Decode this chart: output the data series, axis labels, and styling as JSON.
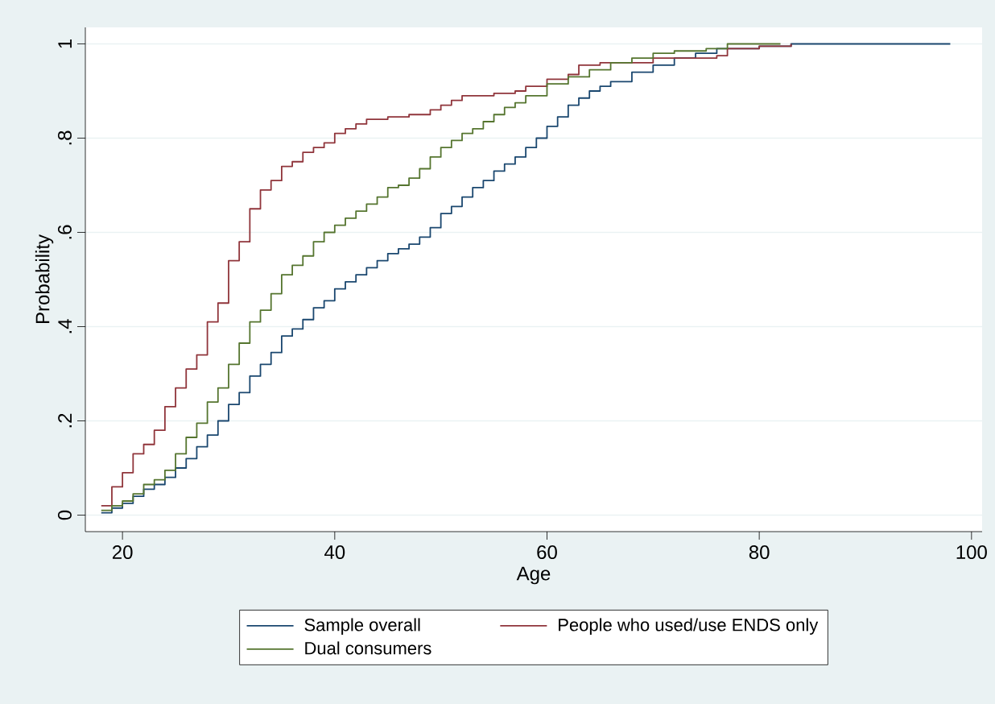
{
  "chart_data": {
    "type": "step",
    "xlabel": "Age",
    "ylabel": "Probability",
    "xlim": [
      16.5,
      101
    ],
    "ylim": [
      -0.035,
      1.035
    ],
    "xticks": [
      20,
      40,
      60,
      80,
      100
    ],
    "yticks": [
      0,
      {
        "value": 0.2,
        "label": ".2"
      },
      {
        "value": 0.4,
        "label": ".4"
      },
      {
        "value": 0.6,
        "label": ".6"
      },
      {
        "value": 0.8,
        "label": ".8"
      },
      1
    ],
    "grid": "y",
    "legend": "bottom",
    "series": [
      {
        "name": "Sample overall",
        "color": "#1a476f",
        "x": [
          18,
          19,
          20,
          21,
          22,
          23,
          24,
          25,
          26,
          27,
          28,
          29,
          30,
          31,
          32,
          33,
          34,
          35,
          36,
          37,
          38,
          39,
          40,
          41,
          42,
          43,
          44,
          45,
          46,
          47,
          48,
          49,
          50,
          51,
          52,
          53,
          54,
          55,
          56,
          57,
          58,
          59,
          60,
          61,
          62,
          63,
          64,
          65,
          66,
          68,
          70,
          72,
          74,
          76,
          80,
          83,
          98
        ],
        "values": [
          0.005,
          0.015,
          0.025,
          0.04,
          0.055,
          0.065,
          0.08,
          0.1,
          0.12,
          0.145,
          0.17,
          0.2,
          0.235,
          0.26,
          0.295,
          0.32,
          0.345,
          0.38,
          0.395,
          0.415,
          0.44,
          0.455,
          0.48,
          0.495,
          0.51,
          0.525,
          0.54,
          0.555,
          0.565,
          0.575,
          0.59,
          0.61,
          0.64,
          0.655,
          0.675,
          0.695,
          0.71,
          0.73,
          0.745,
          0.76,
          0.78,
          0.8,
          0.825,
          0.845,
          0.87,
          0.885,
          0.9,
          0.91,
          0.92,
          0.94,
          0.955,
          0.97,
          0.98,
          0.99,
          0.995,
          1.0,
          1.0
        ]
      },
      {
        "name": "People who used/use ENDS only",
        "color": "#90353b",
        "x": [
          18,
          19,
          20,
          21,
          22,
          23,
          24,
          25,
          26,
          27,
          28,
          29,
          30,
          31,
          32,
          33,
          34,
          35,
          36,
          37,
          38,
          39,
          40,
          41,
          42,
          43,
          45,
          47,
          49,
          50,
          51,
          52,
          55,
          57,
          58,
          60,
          62,
          63,
          65,
          70,
          76,
          77,
          80,
          83
        ],
        "values": [
          0.02,
          0.06,
          0.09,
          0.13,
          0.15,
          0.18,
          0.23,
          0.27,
          0.31,
          0.34,
          0.41,
          0.45,
          0.54,
          0.58,
          0.65,
          0.69,
          0.71,
          0.74,
          0.75,
          0.77,
          0.78,
          0.79,
          0.81,
          0.82,
          0.83,
          0.84,
          0.845,
          0.85,
          0.86,
          0.87,
          0.88,
          0.89,
          0.895,
          0.9,
          0.91,
          0.925,
          0.935,
          0.955,
          0.96,
          0.97,
          0.975,
          0.99,
          0.995,
          1.0
        ]
      },
      {
        "name": "Dual consumers",
        "color": "#55752f",
        "x": [
          18,
          19,
          20,
          21,
          22,
          23,
          24,
          25,
          26,
          27,
          28,
          29,
          30,
          31,
          32,
          33,
          34,
          35,
          36,
          37,
          38,
          39,
          40,
          41,
          42,
          43,
          44,
          45,
          46,
          47,
          48,
          49,
          50,
          51,
          52,
          53,
          54,
          55,
          56,
          57,
          58,
          60,
          62,
          64,
          66,
          68,
          70,
          72,
          75,
          77,
          82
        ],
        "values": [
          0.01,
          0.02,
          0.03,
          0.045,
          0.065,
          0.075,
          0.095,
          0.13,
          0.165,
          0.195,
          0.24,
          0.27,
          0.32,
          0.365,
          0.41,
          0.435,
          0.47,
          0.51,
          0.53,
          0.55,
          0.58,
          0.6,
          0.615,
          0.63,
          0.645,
          0.66,
          0.675,
          0.695,
          0.7,
          0.715,
          0.735,
          0.76,
          0.78,
          0.795,
          0.81,
          0.82,
          0.835,
          0.85,
          0.865,
          0.875,
          0.89,
          0.915,
          0.93,
          0.945,
          0.96,
          0.97,
          0.98,
          0.985,
          0.99,
          1.0,
          1.0
        ]
      }
    ]
  }
}
